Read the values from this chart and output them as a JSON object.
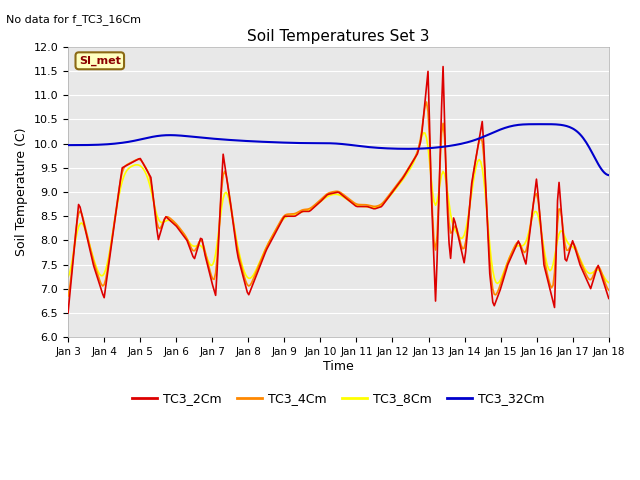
{
  "title": "Soil Temperatures Set 3",
  "xlabel": "Time",
  "ylabel": "Soil Temperature (C)",
  "note": "No data for f_TC3_16Cm",
  "box_label": "SI_met",
  "ylim": [
    6.0,
    12.0
  ],
  "yticks": [
    6.0,
    6.5,
    7.0,
    7.5,
    8.0,
    8.5,
    9.0,
    9.5,
    10.0,
    10.5,
    11.0,
    11.5,
    12.0
  ],
  "xtick_labels": [
    "Jan 3",
    "Jan 4",
    "Jan 5",
    "Jan 6",
    "Jan 7",
    "Jan 8",
    "Jan 9",
    "Jan 10",
    "Jan 11",
    "Jan 12",
    "Jan 13",
    "Jan 14",
    "Jan 15",
    "Jan 16",
    "Jan 17",
    "Jan 18"
  ],
  "colors": {
    "TC3_2Cm": "#dd0000",
    "TC3_4Cm": "#ff8800",
    "TC3_8Cm": "#ffff00",
    "TC3_32Cm": "#0000cc"
  },
  "bg_color": "#e8e8e8",
  "legend_items": [
    "TC3_2Cm",
    "TC3_4Cm",
    "TC3_8Cm",
    "TC3_32Cm"
  ],
  "figsize": [
    6.4,
    4.8
  ],
  "dpi": 100
}
